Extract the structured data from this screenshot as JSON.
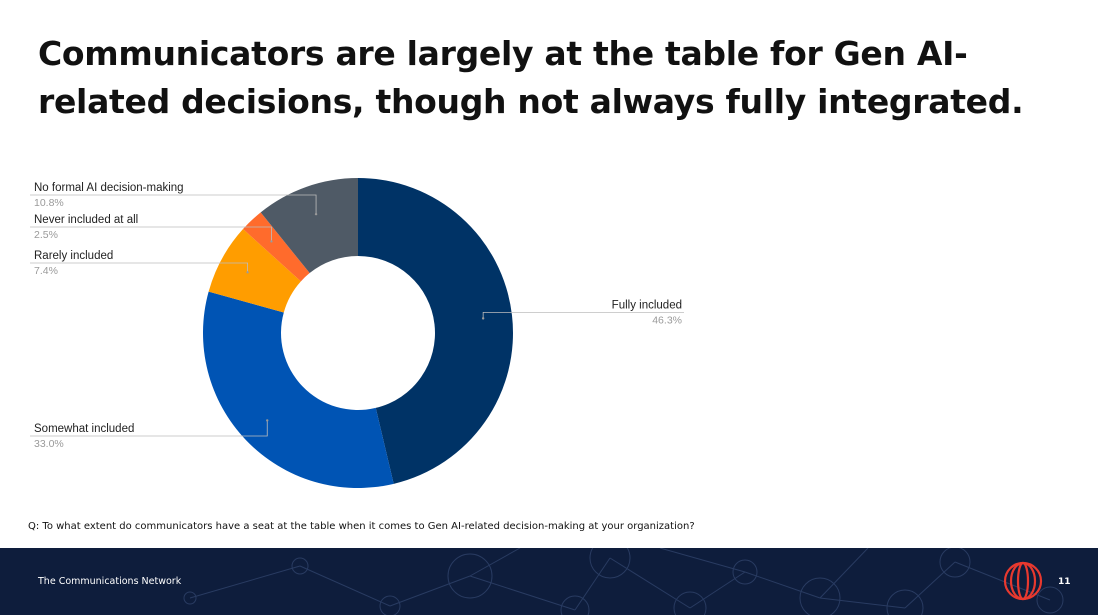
{
  "slide": {
    "title": "Communicators are largely at the table for Gen AI-related decisions, though not always fully integrated.",
    "question": "Q: To what extent do communicators have a seat at the table when it comes to Gen AI-related decision-making at your organization?",
    "footer_org": "The Communications Network",
    "page_number": "11"
  },
  "chart_data": {
    "type": "pie",
    "donut": true,
    "title": "",
    "slices": [
      {
        "label": "Fully included",
        "value": 46.3,
        "display": "46.3%",
        "color": "#003366"
      },
      {
        "label": "Somewhat included",
        "value": 33.0,
        "display": "33.0%",
        "color": "#0054b4"
      },
      {
        "label": "Rarely included",
        "value": 7.4,
        "display": "7.4%",
        "color": "#ff9d00"
      },
      {
        "label": "Never included at all",
        "value": 2.5,
        "display": "2.5%",
        "color": "#ff6b2c"
      },
      {
        "label": "No formal AI decision-making",
        "value": 10.8,
        "display": "10.8%",
        "color": "#4f5a66"
      }
    ]
  },
  "colors": {
    "footer_bg": "#0e1d3c",
    "logo_accent": "#e8392f"
  },
  "icons": {
    "logo": "concentric-rings-logo-icon"
  }
}
